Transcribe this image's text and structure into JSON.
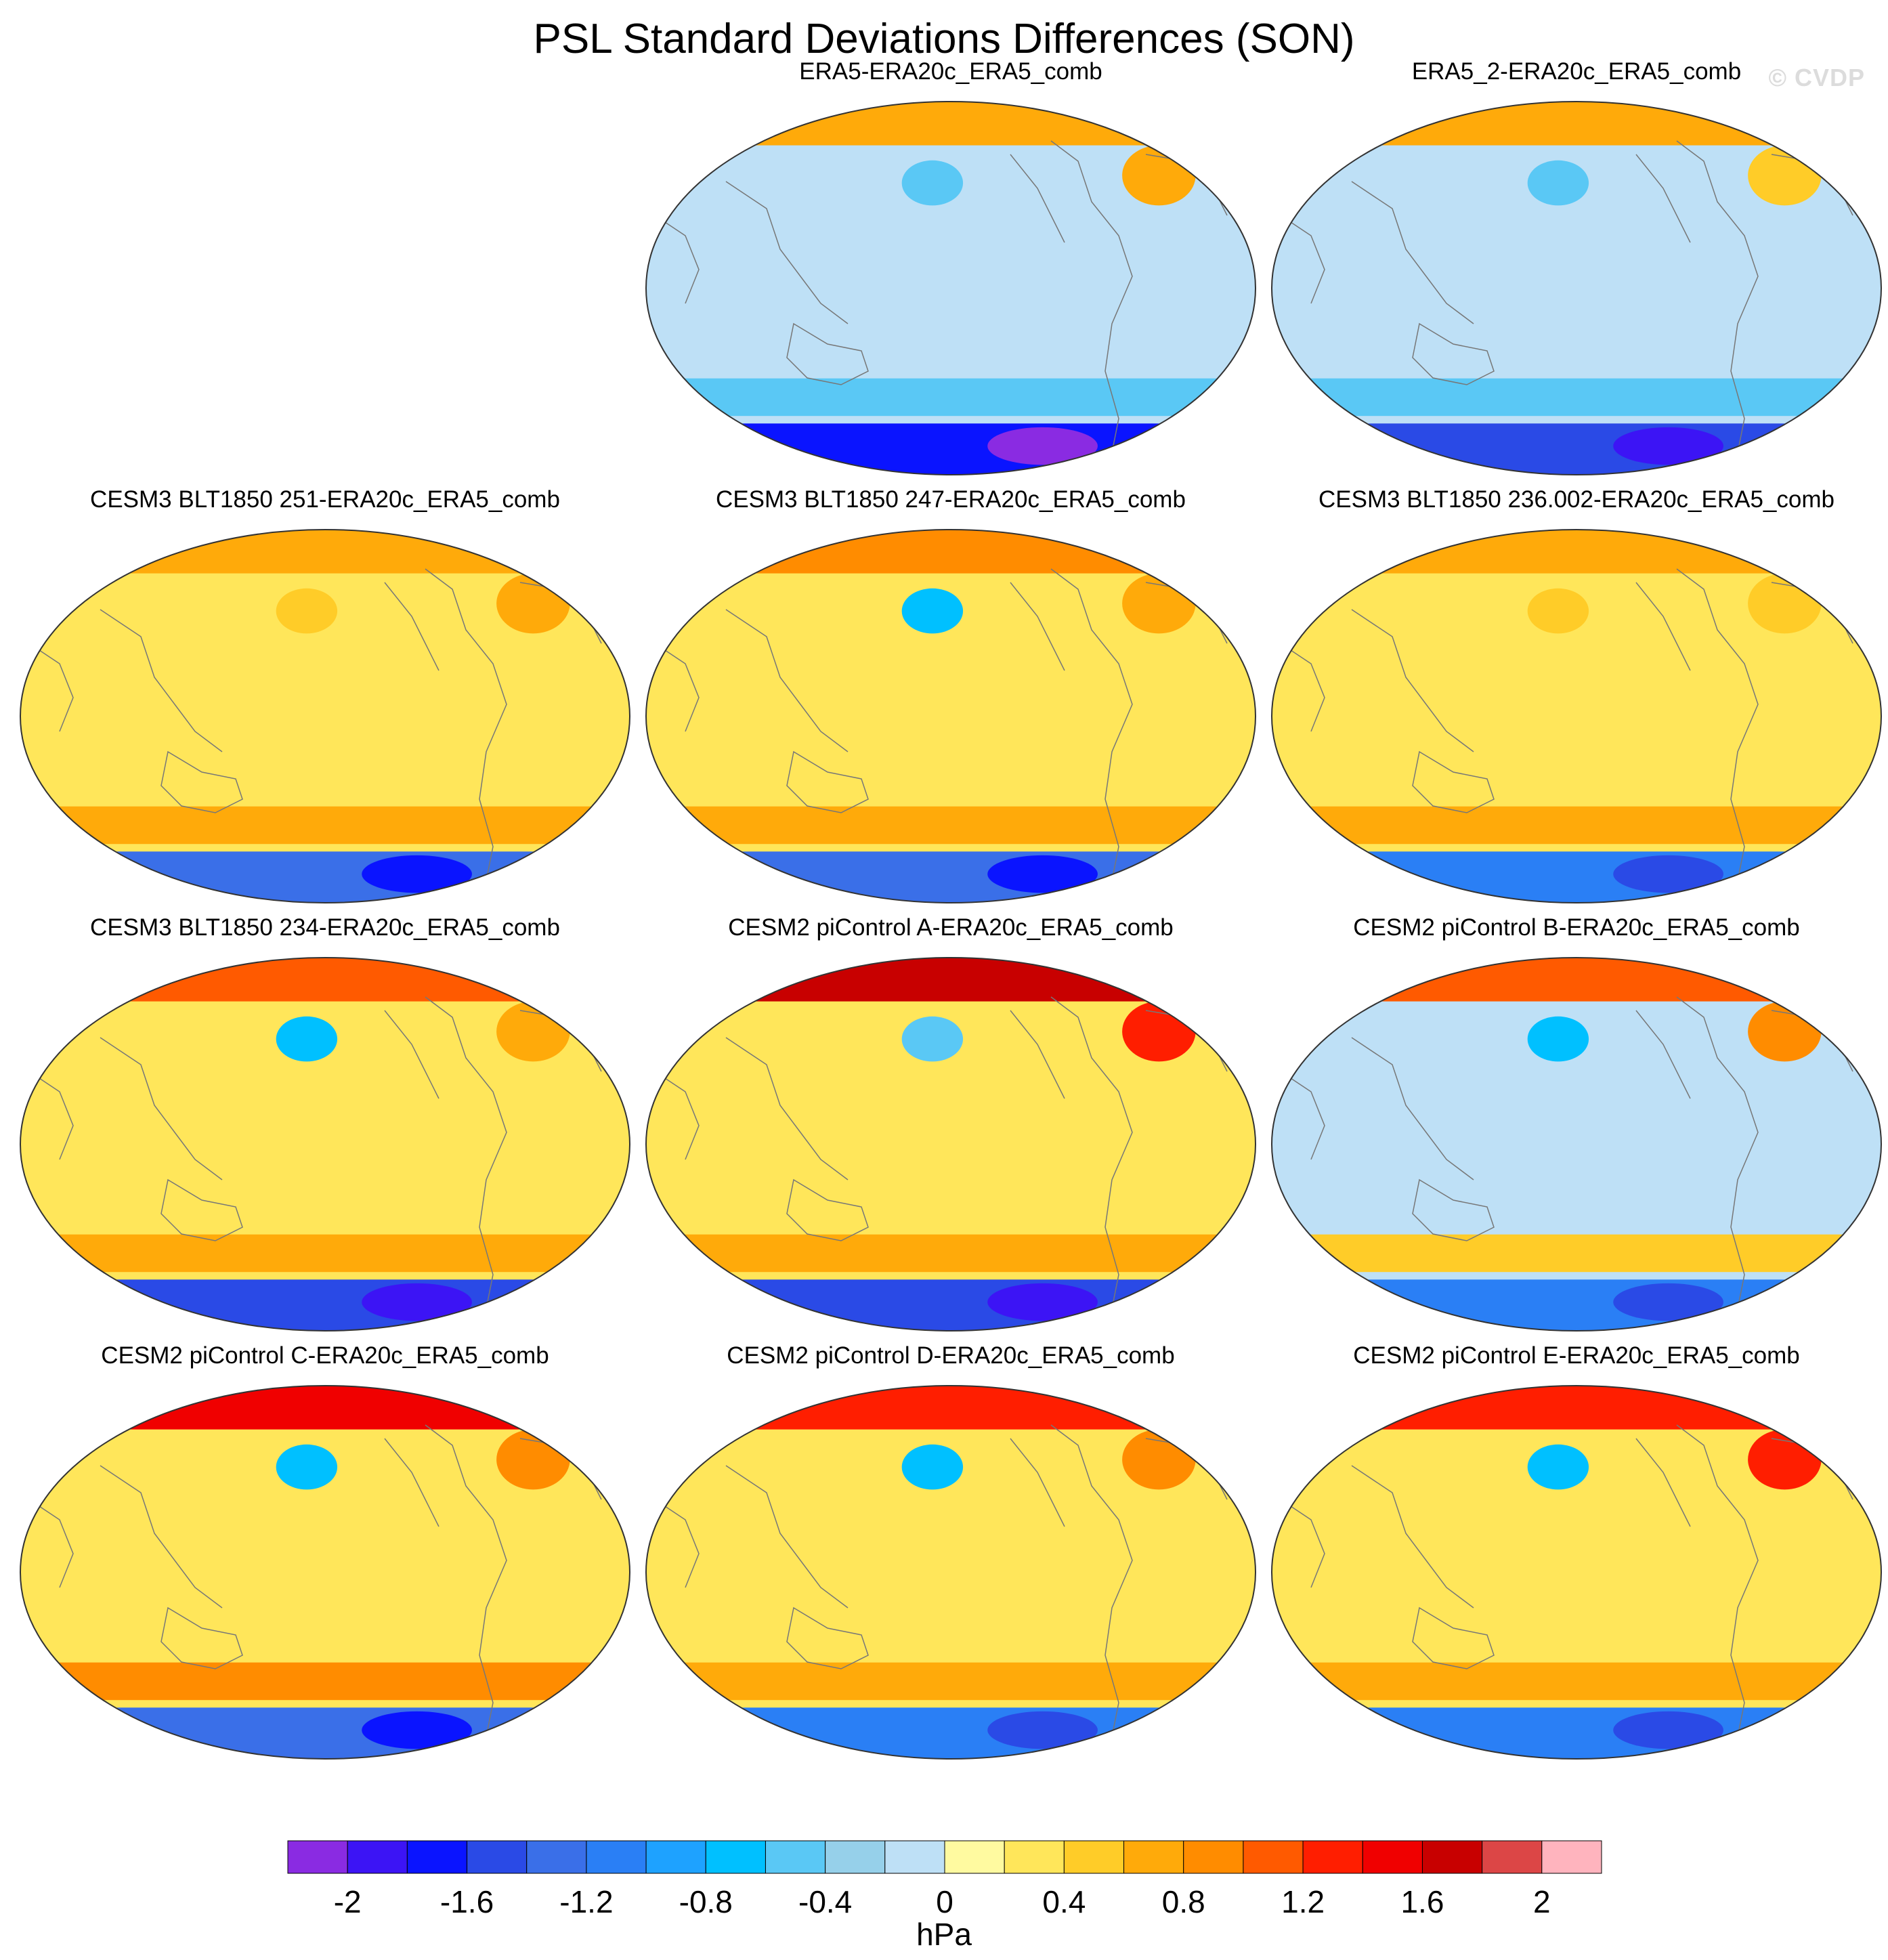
{
  "title": "PSL Standard Deviations Differences (SON)",
  "watermark": "© CVDP",
  "chart_data": {
    "type": "heatmap",
    "projection": "Robinson-style global maps, Pacific-centered",
    "variable": "PSL standard deviation difference",
    "season": "SON",
    "units": "hPa",
    "panels": [
      {
        "title": "ERA5-ERA20c_ERA5_comb",
        "row": 1,
        "col": 2,
        "pattern": {
          "arctic": 0.6,
          "north_pacific": -0.6,
          "north_atlantic": 0.6,
          "tropics": -0.2,
          "south_ocean": -0.6,
          "antarctic": -1.8
        }
      },
      {
        "title": "ERA5_2-ERA20c_ERA5_comb",
        "row": 1,
        "col": 3,
        "pattern": {
          "arctic": 0.6,
          "north_pacific": -0.6,
          "north_atlantic": 0.4,
          "tropics": -0.2,
          "south_ocean": -0.6,
          "antarctic": -1.6
        }
      },
      {
        "title": "CESM3 BLT1850 251-ERA20c_ERA5_comb",
        "row": 2,
        "col": 1,
        "pattern": {
          "arctic": 0.6,
          "north_pacific": 0.4,
          "north_atlantic": 0.6,
          "tropics": 0.2,
          "south_ocean": 0.6,
          "antarctic": -1.4
        }
      },
      {
        "title": "CESM3 BLT1850 247-ERA20c_ERA5_comb",
        "row": 2,
        "col": 2,
        "pattern": {
          "arctic": 0.8,
          "north_pacific": -0.8,
          "north_atlantic": 0.6,
          "tropics": 0.2,
          "south_ocean": 0.6,
          "antarctic": -1.4
        }
      },
      {
        "title": "CESM3 BLT1850 236.002-ERA20c_ERA5_comb",
        "row": 2,
        "col": 3,
        "pattern": {
          "arctic": 0.6,
          "north_pacific": 0.4,
          "north_atlantic": 0.4,
          "tropics": 0.2,
          "south_ocean": 0.6,
          "antarctic": -1.2
        }
      },
      {
        "title": "CESM3 BLT1850 234-ERA20c_ERA5_comb",
        "row": 3,
        "col": 1,
        "pattern": {
          "arctic": 1.0,
          "north_pacific": -0.8,
          "north_atlantic": 0.6,
          "tropics": 0.2,
          "south_ocean": 0.6,
          "antarctic": -1.6
        }
      },
      {
        "title": "CESM2 piControl A-ERA20c_ERA5_comb",
        "row": 3,
        "col": 2,
        "pattern": {
          "arctic": 1.6,
          "north_pacific": -0.6,
          "north_atlantic": 1.2,
          "tropics": 0.2,
          "south_ocean": 0.6,
          "antarctic": -1.6
        }
      },
      {
        "title": "CESM2 piControl B-ERA20c_ERA5_comb",
        "row": 3,
        "col": 3,
        "pattern": {
          "arctic": 1.0,
          "north_pacific": -0.8,
          "north_atlantic": 0.8,
          "tropics": -0.2,
          "south_ocean": 0.4,
          "antarctic": -1.2
        }
      },
      {
        "title": "CESM2 piControl C-ERA20c_ERA5_comb",
        "row": 4,
        "col": 1,
        "pattern": {
          "arctic": 1.4,
          "north_pacific": -0.8,
          "north_atlantic": 0.8,
          "tropics": 0.2,
          "south_ocean": 0.8,
          "antarctic": -1.4
        }
      },
      {
        "title": "CESM2 piControl D-ERA20c_ERA5_comb",
        "row": 4,
        "col": 2,
        "pattern": {
          "arctic": 1.2,
          "north_pacific": -0.8,
          "north_atlantic": 0.8,
          "tropics": 0.2,
          "south_ocean": 0.6,
          "antarctic": -1.2
        }
      },
      {
        "title": "CESM2 piControl E-ERA20c_ERA5_comb",
        "row": 4,
        "col": 3,
        "pattern": {
          "arctic": 1.2,
          "north_pacific": -0.8,
          "north_atlantic": 1.2,
          "tropics": 0.2,
          "south_ocean": 0.6,
          "antarctic": -1.2
        }
      }
    ],
    "colorbar": {
      "label": "hPa",
      "range": [
        -2.2,
        2.2
      ],
      "step": 0.2,
      "tick_labels": [
        "-2",
        "-1.6",
        "-1.2",
        "-0.8",
        "-0.4",
        "0",
        "0.4",
        "0.8",
        "1.2",
        "1.6",
        "2"
      ],
      "colors": [
        "#8a2be2",
        "#3c14f5",
        "#0a14ff",
        "#2a4ae6",
        "#3a6fe8",
        "#2a7ff5",
        "#1ea2ff",
        "#00c0ff",
        "#5ac8f5",
        "#96d0ea",
        "#bee0f6",
        "#fffaa0",
        "#ffe65a",
        "#ffcc28",
        "#ffaa0a",
        "#ff8c00",
        "#ff5a00",
        "#ff1e00",
        "#f00000",
        "#c80000",
        "#dc4646",
        "#ffb4be"
      ]
    }
  }
}
